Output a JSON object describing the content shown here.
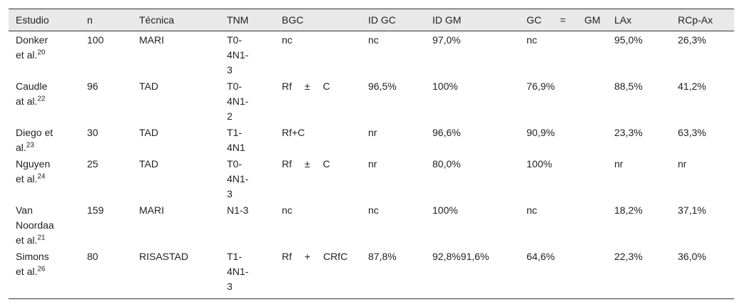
{
  "table": {
    "header": [
      "Estudio",
      "n",
      "Técnica",
      "TNM",
      "BGC",
      "ID GC",
      "ID GM",
      "GC = GM",
      "LAx",
      "RCp-Ax"
    ],
    "rows": [
      [
        {
          "text": "Donker et al.",
          "ref": "20"
        },
        "100",
        "MARI",
        "T0-4N1-3",
        "nc",
        "nc",
        "97,0%",
        "nc",
        "95,0%",
        "26,3%"
      ],
      [
        {
          "text": "Caudle at al.",
          "ref": "22"
        },
        "96",
        "TAD",
        "T0-4N1-2",
        "Rf ± C",
        "96,5%",
        "100%",
        "76,9%",
        "88,5%",
        "41,2%"
      ],
      [
        {
          "text": "Diego et al.",
          "ref": "23"
        },
        "30",
        "TAD",
        "T1-4N1",
        "Rf+C",
        "nr",
        "96,6%",
        "90,9%",
        "23,3%",
        "63,3%"
      ],
      [
        {
          "text": "Nguyen et al.",
          "ref": "24"
        },
        "25",
        "TAD",
        "T0-4N1-3",
        "Rf ± C",
        "nr",
        "80,0%",
        "100%",
        "nr",
        "nr"
      ],
      [
        {
          "text": "Van Noordaa et al.",
          "ref": "21"
        },
        "159",
        "MARI",
        "N1-3",
        "nc",
        "nc",
        "100%",
        "nc",
        "18,2%",
        "37,1%"
      ],
      [
        {
          "text": "Simons et al.",
          "ref": "26"
        },
        "80",
        "RISASTAD",
        "T1-4N1-3",
        "Rf + CRfC",
        "87,8%",
        "92,8%91,6%",
        "64,6%",
        "22,3%",
        "36,0%"
      ]
    ]
  }
}
